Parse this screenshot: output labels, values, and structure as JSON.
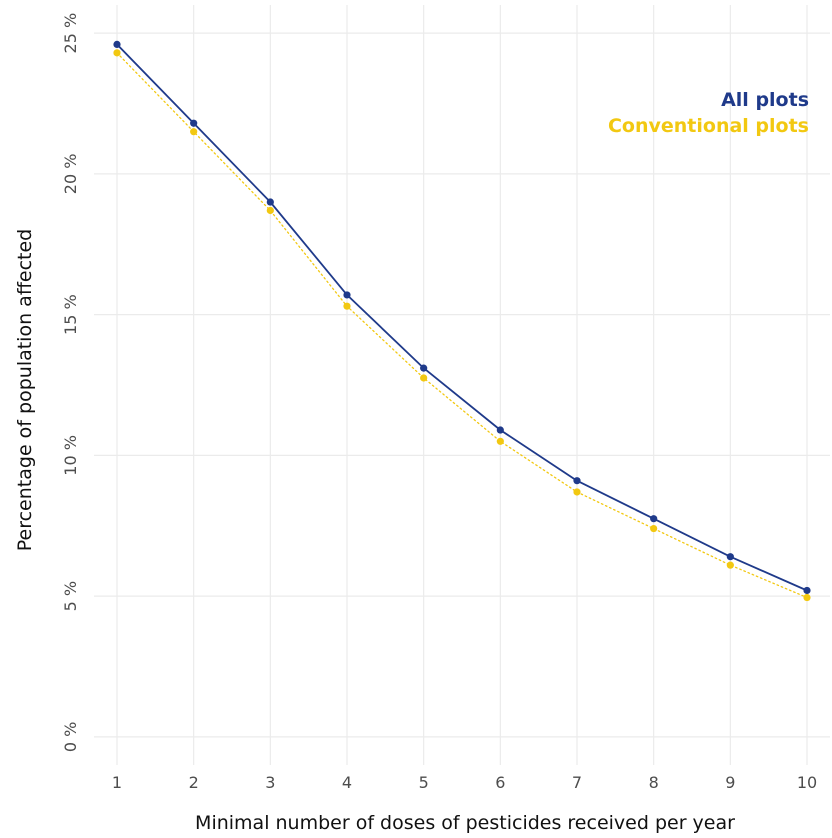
{
  "chart_data": {
    "type": "line",
    "title": "",
    "xlabel": "Minimal number of doses of pesticides received per year",
    "ylabel": "Percentage of population affected",
    "x": [
      1,
      2,
      3,
      4,
      5,
      6,
      7,
      8,
      9,
      10
    ],
    "x_tick_labels": [
      "1",
      "2",
      "3",
      "4",
      "5",
      "6",
      "7",
      "8",
      "9",
      "10"
    ],
    "y_ticks": [
      0,
      5,
      10,
      15,
      20,
      25
    ],
    "y_tick_labels": [
      "0 %",
      "5 %",
      "10 %",
      "15 %",
      "20 %",
      "25 %"
    ],
    "xlim": [
      0.7,
      10.3
    ],
    "ylim": [
      -1.0,
      26.0
    ],
    "grid": true,
    "legend_position": "top-right",
    "series": [
      {
        "name": "All plots",
        "color": "#1f3a8a",
        "line_style": "solid",
        "values": [
          24.6,
          21.8,
          19.0,
          15.7,
          13.1,
          10.9,
          9.1,
          7.75,
          6.4,
          5.2
        ]
      },
      {
        "name": "Conventional plots",
        "color": "#f2c811",
        "line_style": "dotted",
        "values": [
          24.3,
          21.5,
          18.7,
          15.3,
          12.75,
          10.5,
          8.7,
          7.4,
          6.1,
          4.95
        ]
      }
    ]
  }
}
